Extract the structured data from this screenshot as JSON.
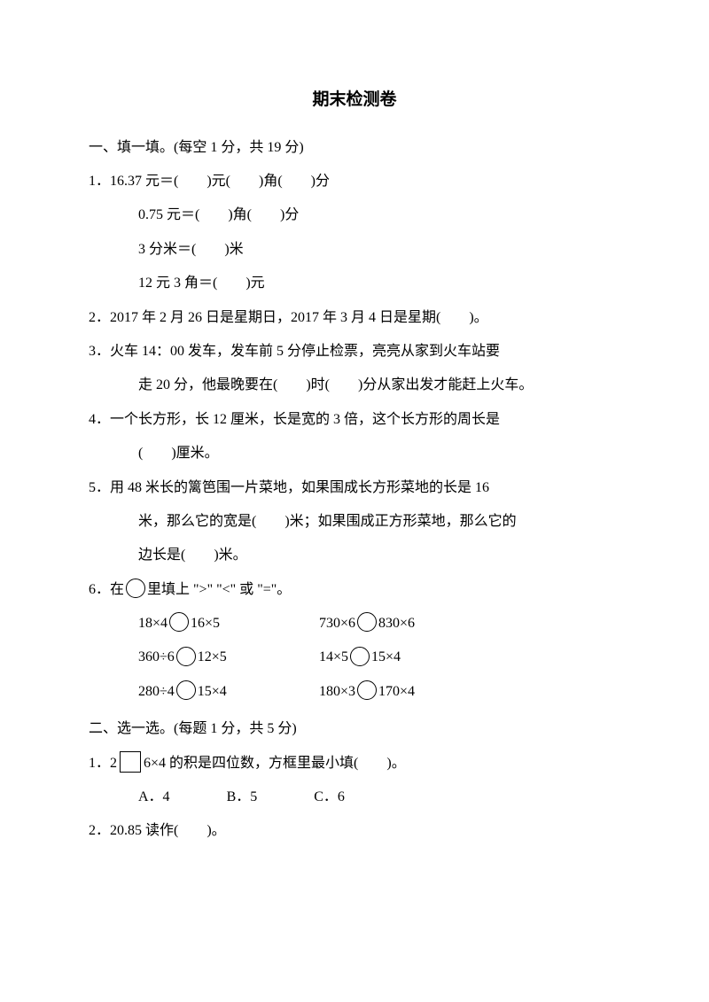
{
  "title": "期末检测卷",
  "section1": {
    "header": "一、填一填。(每空 1 分，共 19 分)",
    "q1": {
      "l1": "1．16.37 元＝(　　)元(　　)角(　　)分",
      "l2": "0.75 元＝(　　)角(　　)分",
      "l3": "3 分米＝(　　)米",
      "l4": "12 元 3 角＝(　　)元"
    },
    "q2": "2．2017 年 2 月 26 日是星期日，2017 年 3 月 4 日是星期(　　)。",
    "q3": {
      "l1": "3．火车 14：00 发车，发车前 5 分停止检票，亮亮从家到火车站要",
      "l2": "走 20 分，他最晚要在(　　)时(　　)分从家出发才能赶上火车。"
    },
    "q4": {
      "l1": "4．一个长方形，长 12 厘米，长是宽的 3 倍，这个长方形的周长是",
      "l2": "(　　)厘米。"
    },
    "q5": {
      "l1": "5．用 48 米长的篱笆围一片菜地，如果围成长方形菜地的长是 16",
      "l2": "米，那么它的宽是(　　)米；如果围成正方形菜地，那么它的",
      "l3": "边长是(　　)米。"
    },
    "q6": {
      "stem_a": "6．在",
      "stem_b": "里填上 \">\" \"<\" 或 \"=\"。",
      "r1a_left": "18×4",
      "r1a_right": "16×5",
      "r1b_left": "730×6",
      "r1b_right": "830×6",
      "r2a_left": "360÷6",
      "r2a_right": "12×5",
      "r2b_left": "14×5",
      "r2b_right": "15×4",
      "r3a_left": "280÷4",
      "r3a_right": "15×4",
      "r3b_left": "180×3",
      "r3b_right": "170×4"
    }
  },
  "section2": {
    "header": "二、选一选。(每题 1 分，共 5 分)",
    "q1": {
      "stem_a": "1．2",
      "stem_b": "6×4 的积是四位数，方框里最小填(　　)。",
      "optA": "A．4",
      "optB": "B．5",
      "optC": "C．6"
    },
    "q2": "2．20.85 读作(　　)。"
  }
}
